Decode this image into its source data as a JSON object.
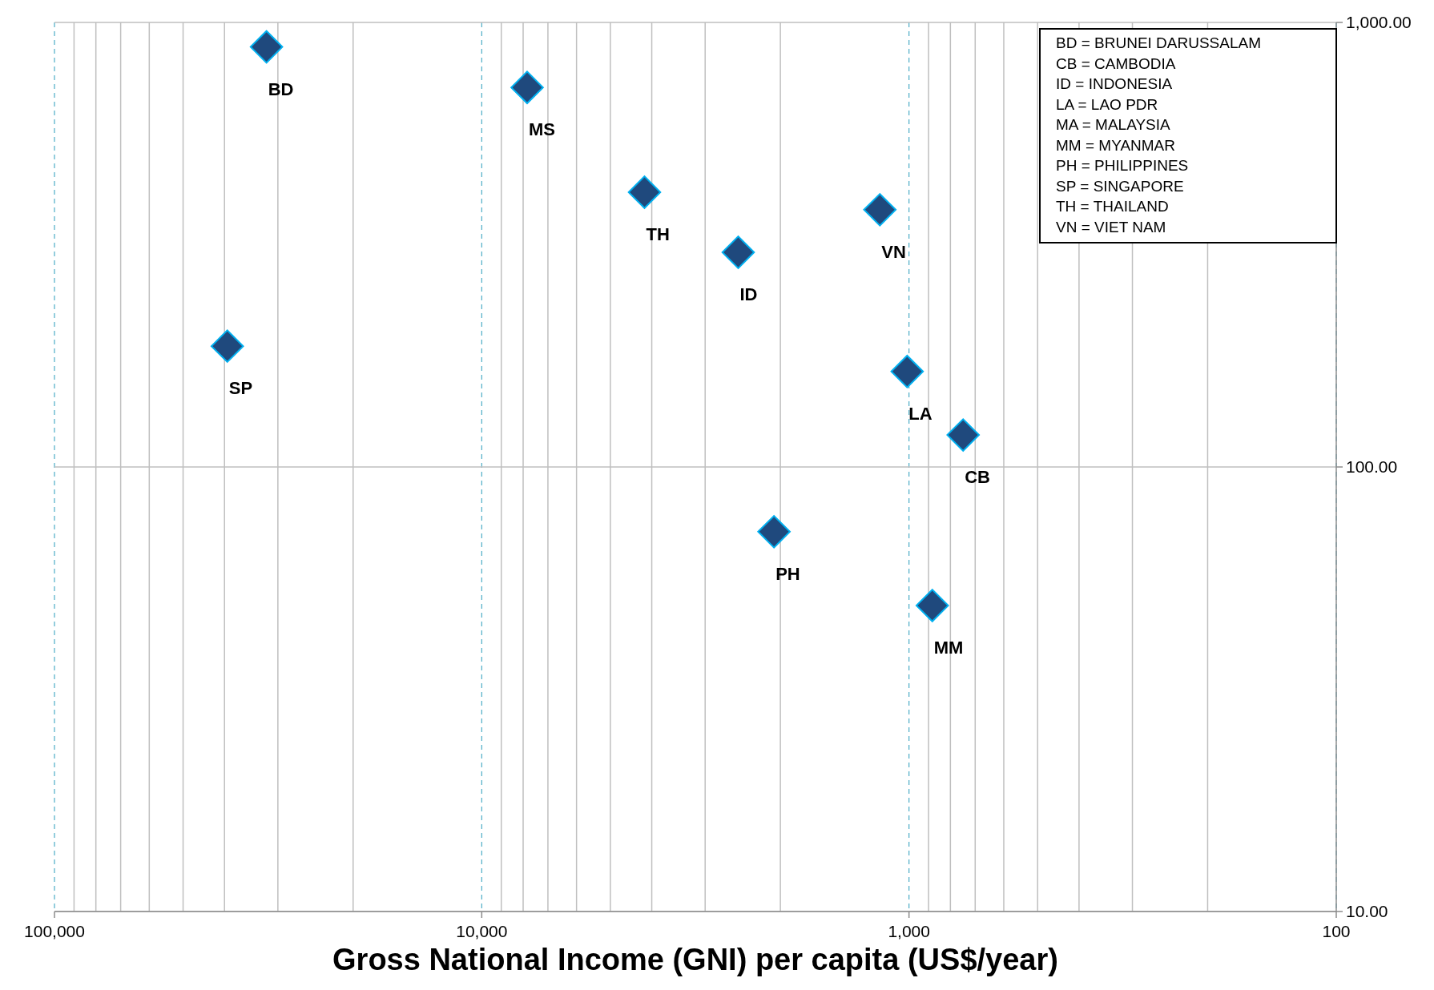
{
  "chart_data": {
    "type": "scatter",
    "xlabel": "Gross National Income (GNI) per capita (US$/year)",
    "log": "xy",
    "xlim": [
      100000,
      100
    ],
    "ylim": [
      10,
      1000
    ],
    "xticks": [
      {
        "value": 100000,
        "label": "100,000"
      },
      {
        "value": 10000,
        "label": "10,000"
      },
      {
        "value": 1000,
        "label": "1,000"
      },
      100
    ],
    "yticks": [
      {
        "value": 10,
        "label": "10.00"
      },
      {
        "value": 100,
        "label": "100.00"
      },
      {
        "value": 1000,
        "label": "1,000.00"
      }
    ],
    "grid": true,
    "marker": "diamond",
    "series": [
      {
        "name": "BD",
        "color": "#1f497d",
        "x": [
          31900
        ],
        "values": [
          881
        ]
      },
      {
        "name": "MS",
        "color": "#1f497d",
        "x": [
          7830
        ],
        "values": [
          714
        ]
      },
      {
        "name": "TH",
        "color": "#1f497d",
        "x": [
          4160
        ],
        "values": [
          415
        ]
      },
      {
        "name": "ID",
        "color": "#1f497d",
        "x": [
          2510
        ],
        "values": [
          304
        ]
      },
      {
        "name": "VN",
        "color": "#1f497d",
        "x": [
          1170
        ],
        "values": [
          379
        ]
      },
      {
        "name": "SP",
        "color": "#1f497d",
        "x": [
          39400
        ],
        "values": [
          187
        ]
      },
      {
        "name": "LA",
        "color": "#1f497d",
        "x": [
          1010
        ],
        "values": [
          164
        ]
      },
      {
        "name": "CB",
        "color": "#1f497d",
        "x": [
          747
        ],
        "values": [
          118
        ]
      },
      {
        "name": "PH",
        "color": "#1f497d",
        "x": [
          2070
        ],
        "values": [
          71.5
        ]
      },
      {
        "name": "MM",
        "color": "#1f497d",
        "x": [
          882
        ],
        "values": [
          48.8
        ]
      }
    ],
    "annotations": [
      "BD = BRUNEI DARUSSALAM",
      "CB = CAMBODIA",
      "ID = INDONESIA",
      "LA = LAO PDR",
      "MA = MALAYSIA",
      "MM = MYANMAR",
      "PH = PHILIPPINES",
      "SP = SINGAPORE",
      "TH = THAILAND",
      "VN = VIET NAM"
    ]
  }
}
